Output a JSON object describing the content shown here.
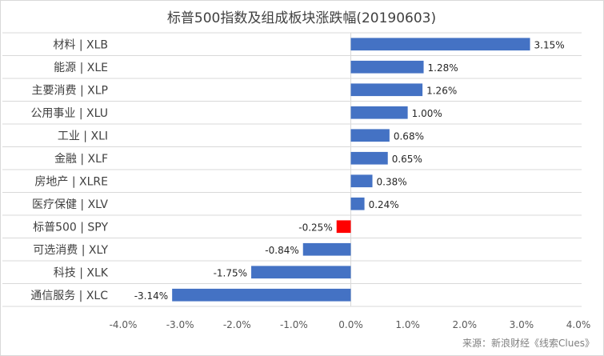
{
  "chart_data": {
    "type": "bar",
    "orientation": "horizontal",
    "title": "标普500指数及组成板块涨跌幅(20190603)",
    "xlabel": "",
    "ylabel": "",
    "categories": [
      "材料 | XLB",
      "能源 | XLE",
      "主要消费 | XLP",
      "公用事业 | XLU",
      "工业 | XLI",
      "金融 | XLF",
      "房地产 | XLRE",
      "医疗保健 | XLV",
      "标普500 | SPY",
      "可选消费 | XLY",
      "科技 | XLK",
      "通信服务 | XLC"
    ],
    "values": [
      3.15,
      1.28,
      1.26,
      1.0,
      0.68,
      0.65,
      0.38,
      0.24,
      -0.25,
      -0.84,
      -1.75,
      -3.14
    ],
    "value_labels": [
      "3.15%",
      "1.28%",
      "1.26%",
      "1.00%",
      "0.68%",
      "0.65%",
      "0.38%",
      "0.24%",
      "-0.25%",
      "-0.84%",
      "-1.75%",
      "-3.14%"
    ],
    "bar_colors": [
      "#4472c4",
      "#4472c4",
      "#4472c4",
      "#4472c4",
      "#4472c4",
      "#4472c4",
      "#4472c4",
      "#4472c4",
      "#ff0000",
      "#4472c4",
      "#4472c4",
      "#4472c4"
    ],
    "xlim": [
      -4.0,
      4.0
    ],
    "xticks": [
      -4.0,
      -3.0,
      -2.0,
      -1.0,
      0.0,
      1.0,
      2.0,
      3.0,
      4.0
    ],
    "xtick_labels": [
      "-4.0%",
      "-3.0%",
      "-2.0%",
      "-1.0%",
      "0.0%",
      "1.0%",
      "2.0%",
      "3.0%",
      "4.0%"
    ],
    "grid": "horizontal category separators",
    "legend": "none"
  },
  "source": "来源：新浪财经《线索Clues》"
}
